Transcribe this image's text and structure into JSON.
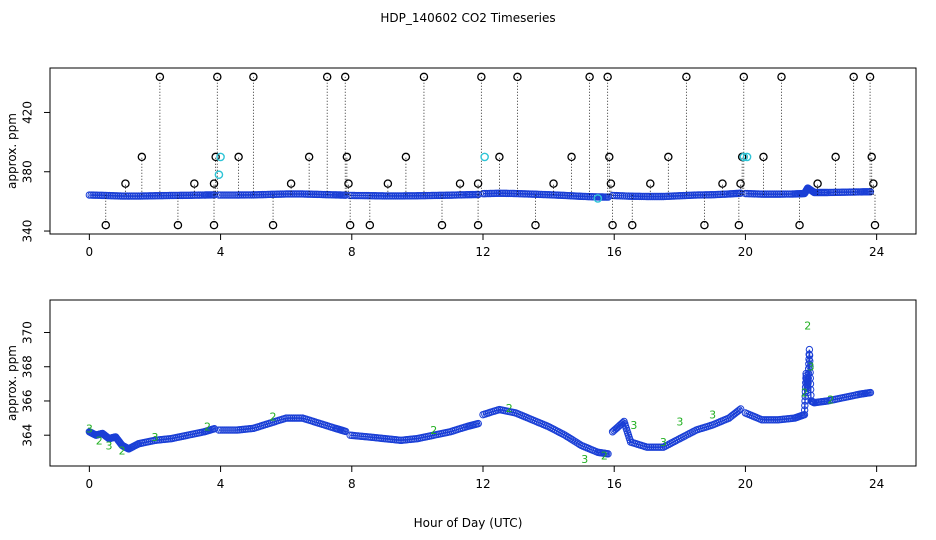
{
  "chart_data": [
    {
      "type": "scatter",
      "panel": "top",
      "title": "HDP_140602  CO2 Timeseries",
      "xlabel": "",
      "ylabel": "approx. ppm",
      "xlim": [
        -1.2,
        25.2
      ],
      "ylim": [
        338,
        450
      ],
      "xticks": [
        0,
        4,
        8,
        12,
        16,
        20,
        24
      ],
      "yticks": [
        340,
        380,
        420
      ],
      "series": [
        {
          "name": "CO2 trace",
          "color": "#1a3fd6",
          "segments": [
            {
              "x": [
                0.0,
                0.5,
                1.0,
                1.5,
                2.0,
                2.5,
                3.0,
                3.5,
                3.85
              ],
              "y": [
                364.3,
                364.0,
                363.6,
                363.6,
                363.8,
                364.0,
                364.1,
                364.3,
                364.4
              ]
            },
            {
              "x": [
                3.95,
                4.5,
                5.0,
                5.5,
                6.0,
                6.5,
                7.0,
                7.5,
                7.85
              ],
              "y": [
                364.3,
                364.3,
                364.4,
                364.7,
                365.0,
                365.0,
                364.7,
                364.4,
                364.2
              ]
            },
            {
              "x": [
                7.95,
                8.5,
                9.0,
                9.5,
                10.0,
                10.5,
                11.0,
                11.5,
                11.9
              ],
              "y": [
                364.0,
                363.9,
                363.7,
                363.7,
                363.8,
                364.0,
                364.2,
                364.5,
                364.7
              ]
            },
            {
              "x": [
                12.0,
                12.5,
                13.0,
                13.5,
                14.0,
                14.5,
                15.0,
                15.5,
                15.85
              ],
              "y": [
                365.2,
                365.5,
                365.3,
                364.9,
                364.5,
                364.0,
                363.4,
                363.0,
                362.9
              ]
            },
            {
              "x": [
                15.95,
                16.5,
                17.0,
                17.5,
                18.0,
                18.5,
                19.0,
                19.5,
                19.9
              ],
              "y": [
                364.0,
                363.5,
                363.3,
                363.3,
                363.8,
                364.3,
                364.5,
                365.0,
                365.6
              ]
            },
            {
              "x": [
                20.0,
                20.5,
                21.0,
                21.5,
                21.8,
                21.9,
                22.1,
                22.5,
                23.0,
                23.5,
                23.85
              ],
              "y": [
                365.3,
                364.9,
                364.9,
                365.0,
                365.3,
                369.0,
                366.0,
                366.0,
                366.2,
                366.4,
                366.5
              ]
            }
          ]
        },
        {
          "name": "spikes",
          "color": "#000000",
          "points": [
            [
              0.5,
              344
            ],
            [
              1.1,
              372
            ],
            [
              1.6,
              390
            ],
            [
              2.15,
              444
            ],
            [
              2.7,
              344
            ],
            [
              3.2,
              372
            ],
            [
              3.8,
              344
            ],
            [
              3.8,
              372
            ],
            [
              3.85,
              390
            ],
            [
              3.9,
              444
            ],
            [
              4.55,
              390
            ],
            [
              5.0,
              444
            ],
            [
              5.6,
              344
            ],
            [
              6.15,
              372
            ],
            [
              6.7,
              390
            ],
            [
              7.25,
              444
            ],
            [
              7.8,
              444
            ],
            [
              7.85,
              390
            ],
            [
              7.9,
              372
            ],
            [
              7.95,
              344
            ],
            [
              8.55,
              344
            ],
            [
              9.1,
              372
            ],
            [
              9.65,
              390
            ],
            [
              10.2,
              444
            ],
            [
              10.75,
              344
            ],
            [
              11.3,
              372
            ],
            [
              11.85,
              344
            ],
            [
              11.85,
              372
            ],
            [
              11.95,
              444
            ],
            [
              12.5,
              390
            ],
            [
              13.05,
              444
            ],
            [
              13.6,
              344
            ],
            [
              14.15,
              372
            ],
            [
              14.7,
              390
            ],
            [
              15.25,
              444
            ],
            [
              15.8,
              444
            ],
            [
              15.85,
              390
            ],
            [
              15.9,
              372
            ],
            [
              15.95,
              344
            ],
            [
              16.55,
              344
            ],
            [
              17.1,
              372
            ],
            [
              17.65,
              390
            ],
            [
              18.2,
              444
            ],
            [
              18.75,
              344
            ],
            [
              19.3,
              372
            ],
            [
              19.8,
              344
            ],
            [
              19.85,
              372
            ],
            [
              19.9,
              390
            ],
            [
              19.95,
              444
            ],
            [
              20.55,
              390
            ],
            [
              21.1,
              444
            ],
            [
              21.65,
              344
            ],
            [
              22.2,
              372
            ],
            [
              22.75,
              390
            ],
            [
              23.3,
              444
            ],
            [
              23.8,
              444
            ],
            [
              23.85,
              390
            ],
            [
              23.9,
              372
            ],
            [
              23.95,
              344
            ]
          ]
        },
        {
          "name": "highlights",
          "color": "#2ec4d6",
          "points": [
            [
              4.0,
              390
            ],
            [
              3.95,
              378
            ],
            [
              12.05,
              390
            ],
            [
              19.95,
              390
            ],
            [
              20.05,
              390
            ],
            [
              15.5,
              362
            ]
          ]
        }
      ]
    },
    {
      "type": "scatter",
      "panel": "bottom",
      "title": "",
      "xlabel": "Hour of Day (UTC)",
      "ylabel": "approx. ppm",
      "xlim": [
        -1.2,
        25.2
      ],
      "ylim": [
        362.2,
        371.9
      ],
      "xticks": [
        0,
        4,
        8,
        12,
        16,
        20,
        24
      ],
      "yticks": [
        364,
        366,
        368,
        370
      ],
      "series": [
        {
          "name": "CO2 trace",
          "color": "#1a3fd6",
          "segments": [
            {
              "x": [
                0.0,
                0.2,
                0.4,
                0.6,
                0.8,
                1.0,
                1.2,
                1.5,
                2.0,
                2.5,
                3.0,
                3.5,
                3.85
              ],
              "y": [
                364.2,
                364.0,
                364.1,
                363.8,
                363.9,
                363.4,
                363.2,
                363.5,
                363.7,
                363.8,
                364.0,
                364.2,
                364.4
              ]
            },
            {
              "x": [
                3.95,
                4.5,
                5.0,
                5.5,
                6.0,
                6.5,
                7.0,
                7.5,
                7.85
              ],
              "y": [
                364.3,
                364.3,
                364.4,
                364.7,
                365.0,
                365.0,
                364.7,
                364.4,
                364.2
              ]
            },
            {
              "x": [
                7.95,
                8.5,
                9.0,
                9.5,
                10.0,
                10.5,
                11.0,
                11.5,
                11.9
              ],
              "y": [
                364.0,
                363.9,
                363.8,
                363.7,
                363.8,
                364.0,
                364.2,
                364.5,
                364.7
              ]
            },
            {
              "x": [
                12.0,
                12.5,
                13.0,
                13.5,
                14.0,
                14.5,
                15.0,
                15.5,
                15.85
              ],
              "y": [
                365.2,
                365.5,
                365.3,
                364.9,
                364.5,
                364.0,
                363.4,
                363.0,
                362.9
              ]
            },
            {
              "x": [
                15.95,
                16.3,
                16.5,
                17.0,
                17.5,
                18.0,
                18.5,
                19.0,
                19.5,
                19.9
              ],
              "y": [
                364.2,
                364.8,
                363.6,
                363.3,
                363.3,
                363.8,
                364.3,
                364.6,
                365.0,
                365.6
              ]
            },
            {
              "x": [
                20.0,
                20.5,
                21.0,
                21.5,
                21.8,
                21.85,
                21.9,
                21.95,
                22.0,
                22.1,
                22.5,
                23.0,
                23.5,
                23.85
              ],
              "y": [
                365.3,
                364.9,
                364.9,
                365.0,
                365.2,
                367.6,
                366.5,
                369.0,
                366.0,
                365.9,
                366.0,
                366.2,
                366.4,
                366.5
              ]
            }
          ]
        },
        {
          "name": "labels",
          "color": "#22b022",
          "points": [
            [
              0.0,
              364.4,
              "3"
            ],
            [
              0.3,
              363.7,
              "2"
            ],
            [
              0.6,
              363.4,
              "3"
            ],
            [
              1.0,
              363.1,
              "2"
            ],
            [
              2.0,
              363.9,
              "3"
            ],
            [
              3.6,
              364.5,
              "2"
            ],
            [
              5.6,
              365.1,
              "2"
            ],
            [
              10.5,
              364.3,
              "2"
            ],
            [
              12.8,
              365.6,
              "2"
            ],
            [
              15.1,
              362.6,
              "3"
            ],
            [
              15.7,
              362.8,
              "2"
            ],
            [
              16.6,
              364.6,
              "3"
            ],
            [
              17.5,
              363.6,
              "3"
            ],
            [
              18.0,
              364.8,
              "3"
            ],
            [
              19.0,
              365.2,
              "3"
            ],
            [
              21.8,
              366.5,
              "2"
            ],
            [
              21.9,
              370.4,
              "2"
            ],
            [
              22.0,
              368.0,
              "3"
            ],
            [
              22.6,
              366.1,
              "2"
            ]
          ]
        }
      ]
    }
  ]
}
